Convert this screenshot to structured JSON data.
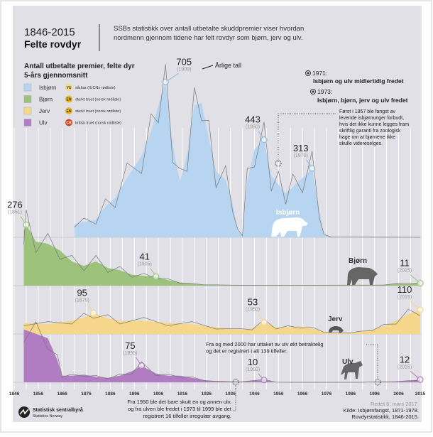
{
  "header": {
    "years": "1846-2015",
    "title": "Felte rovdyr",
    "intro": [
      "SSBs statistikk over antall utbetalte skuddpremier viser hvordan",
      "nordmenn gjennom tidene har felt rovdyr som bjørn, jerv og ulv."
    ]
  },
  "chart_data": {
    "type": "area",
    "title": "Antall utbetalte premier, felte dyr",
    "subtitle": "5-års gjennomsnitt",
    "annual_label": "Årlige tall",
    "xlim": [
      1846,
      2015
    ],
    "x_ticks": [
      1846,
      1856,
      1866,
      1876,
      1886,
      1896,
      1906,
      1916,
      1926,
      1936,
      1946,
      1956,
      1966,
      1976,
      1986,
      1996,
      2006,
      2015
    ],
    "grid": true,
    "series": [
      {
        "name": "Isbjørn",
        "color": "#b7d5f0",
        "status_code": "VU",
        "status": "sårbar (IUCNs rødliste)",
        "status_color": "#f5dc8c",
        "x": [
          1871,
          1875,
          1880,
          1884,
          1888,
          1893,
          1899,
          1903,
          1906,
          1909,
          1912,
          1915,
          1918,
          1921,
          1924,
          1927,
          1930,
          1934,
          1937,
          1939,
          1941,
          1943,
          1946,
          1950,
          1953,
          1956,
          1959,
          1962,
          1966,
          1970,
          1973,
          1975,
          1978,
          1990,
          2015
        ],
        "values": [
          60,
          70,
          80,
          140,
          180,
          270,
          370,
          480,
          600,
          705,
          420,
          250,
          380,
          600,
          610,
          450,
          300,
          260,
          150,
          30,
          10,
          250,
          400,
          443,
          280,
          240,
          200,
          230,
          270,
          313,
          120,
          10,
          2,
          1,
          0
        ],
        "labels": [
          {
            "x": 1909,
            "value": "705",
            "year": "(1909)"
          },
          {
            "x": 1950,
            "value": "443",
            "year": "(1950)"
          },
          {
            "x": 1970,
            "value": "313",
            "year": "(1970)"
          }
        ]
      },
      {
        "name": "Bjørn",
        "color": "#9dc27c",
        "status_code": "EN",
        "status": "sterkt truet (norsk rødliste)",
        "status_color": "#e8b820",
        "x": [
          1850,
          1851,
          1855,
          1860,
          1865,
          1870,
          1875,
          1880,
          1885,
          1890,
          1895,
          1900,
          1905,
          1910,
          1915,
          1920,
          1925,
          1930,
          1940,
          1990,
          2000,
          2005,
          2010,
          2015
        ],
        "values": [
          250,
          276,
          200,
          190,
          160,
          110,
          90,
          110,
          80,
          70,
          50,
          45,
          41,
          25,
          15,
          8,
          5,
          3,
          2,
          2,
          4,
          8,
          10,
          11
        ],
        "labels": [
          {
            "x": 1851,
            "value": "276",
            "year": "(1851)"
          },
          {
            "x": 1905,
            "value": "41",
            "year": "(1905)"
          },
          {
            "x": 2015,
            "value": "11",
            "year": "(2015)"
          }
        ]
      },
      {
        "name": "Jerv",
        "color": "#f6d68a",
        "status_code": "EN",
        "status": "sterkt truet (norsk rødliste)",
        "status_color": "#e8b820",
        "x": [
          1850,
          1860,
          1870,
          1875,
          1879,
          1885,
          1890,
          1900,
          1910,
          1920,
          1930,
          1940,
          1945,
          1950,
          1955,
          1960,
          1965,
          1970,
          1975,
          1980,
          1985,
          1990,
          1995,
          2000,
          2005,
          2010,
          2015
        ],
        "values": [
          50,
          45,
          60,
          75,
          95,
          70,
          60,
          60,
          50,
          45,
          30,
          20,
          25,
          53,
          30,
          30,
          35,
          25,
          10,
          5,
          5,
          10,
          20,
          35,
          60,
          90,
          110
        ],
        "labels": [
          {
            "x": 1879,
            "value": "95",
            "year": "(1879)"
          },
          {
            "x": 1950,
            "value": "53",
            "year": "(1950)"
          },
          {
            "x": 2015,
            "value": "110",
            "year": "(2015)"
          }
        ]
      },
      {
        "name": "Ulv",
        "color": "#b07cc2",
        "status_code": "CR",
        "status": "kritisk truet (norsk rødliste)",
        "status_color": "#d8401c",
        "x": [
          1850,
          1855,
          1860,
          1864,
          1866,
          1870,
          1875,
          1880,
          1885,
          1890,
          1895,
          1899,
          1905,
          1910,
          1915,
          1920,
          1925,
          1930,
          1940,
          1950,
          1955,
          1960,
          1990,
          2000,
          2005,
          2010,
          2015
        ],
        "values": [
          240,
          220,
          200,
          100,
          30,
          30,
          35,
          25,
          20,
          30,
          50,
          75,
          40,
          30,
          30,
          20,
          10,
          4,
          2,
          10,
          1,
          0,
          0,
          2,
          4,
          6,
          12
        ],
        "labels": [
          {
            "x": 1899,
            "value": "75",
            "year": "(1899)"
          },
          {
            "x": 1950,
            "value": "10",
            "year": "(1950)"
          },
          {
            "x": 2015,
            "value": "12",
            "year": "(2015)"
          }
        ]
      }
    ]
  },
  "events": [
    {
      "year": "1971:",
      "text": "Isbjørn og ulv midlertidig fredet"
    },
    {
      "year": "1973:",
      "text": "Isbjørn, bjørn, jerv og ulv fredet"
    }
  ],
  "notes": {
    "isbjorn": [
      "Først i 1957 ble fangst av",
      "levende isbjørnunger forbudt,",
      "hvis det ikke kunne legges fram",
      "skriftlig garanti fra zoologisk",
      "hage om at bjørnene ikke",
      "skulle videreselges."
    ],
    "ulv2000": [
      "Fra og med 2000 har uttaket av ulv økt betraktelig",
      "og det er registrert i alt 139 tilfeller."
    ],
    "ulv1950": [
      "Fra 1950 ble det bare skutt en og annen ulv,",
      "og fra ulven ble fredet i 1973 til 1999 ble det",
      "registrert 16 tilfeller irregulær avgang."
    ]
  },
  "footer": {
    "org": "Statistisk sentralbyrå",
    "org_en": "Statistics Norway",
    "updated": "Rettet 6. mars 2017.",
    "source": [
      "Kilde: Isbjørnfangst, 1871-1978.",
      "Rovdyrstatistikk, 1846-2015."
    ]
  }
}
